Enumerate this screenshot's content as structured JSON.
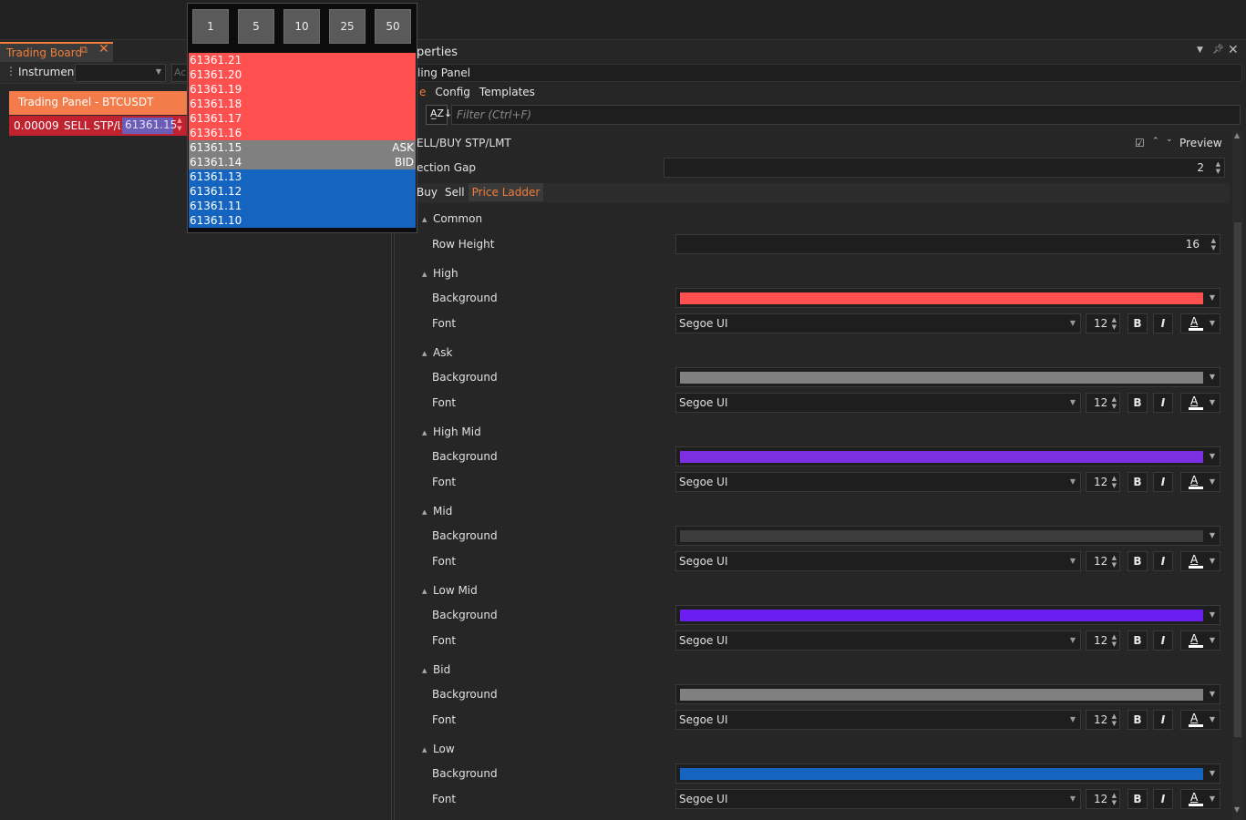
{
  "trading_board": {
    "tab_title": "Trading Board",
    "float_icon": "float-icon",
    "close_icon": "close-icon",
    "instrument_label": "Instrument:",
    "instrument_value": "",
    "extra_field": "Ac",
    "panel": {
      "title": "Trading Panel   -   BTCUSDT",
      "qty": "0.00009",
      "side": "SELL STP/LMT",
      "price": "61361.15"
    }
  },
  "price_popup": {
    "steps": [
      "1",
      "5",
      "10",
      "25",
      "50"
    ],
    "rows": [
      {
        "price": "61361.21",
        "tag": "",
        "color": "#ff5050"
      },
      {
        "price": "61361.20",
        "tag": "",
        "color": "#ff5050"
      },
      {
        "price": "61361.19",
        "tag": "",
        "color": "#ff5050"
      },
      {
        "price": "61361.18",
        "tag": "",
        "color": "#ff5050"
      },
      {
        "price": "61361.17",
        "tag": "",
        "color": "#ff5050"
      },
      {
        "price": "61361.16",
        "tag": "",
        "color": "#ff5050"
      },
      {
        "price": "61361.15",
        "tag": "ASK",
        "color": "#808080"
      },
      {
        "price": "61361.14",
        "tag": "BID",
        "color": "#808080"
      },
      {
        "price": "61361.13",
        "tag": "",
        "color": "#1565c0"
      },
      {
        "price": "61361.12",
        "tag": "",
        "color": "#1565c0"
      },
      {
        "price": "61361.11",
        "tag": "",
        "color": "#1565c0"
      },
      {
        "price": "61361.10",
        "tag": "",
        "color": "#1565c0"
      }
    ]
  },
  "properties": {
    "title": "perties",
    "object": "ling Panel",
    "tabs": [
      "e",
      "Config",
      "Templates"
    ],
    "active_tab": 0,
    "filter_placeholder": "Filter (Ctrl+F)",
    "top_section": {
      "name": "ELL/BUY STP/LMT",
      "preview_label": "Preview",
      "section_gap_label": "ection Gap",
      "section_gap_value": "2"
    },
    "sub_tabs": [
      "Buy",
      "Sell",
      "Price Ladder"
    ],
    "active_sub_tab": 2,
    "common": {
      "title": "Common",
      "row_height_label": "Row Height",
      "row_height_value": "16"
    },
    "background_label": "Background",
    "font_label": "Font",
    "font_name": "Segoe UI",
    "font_size": "12",
    "bold_label": "B",
    "italic_label": "I",
    "font_color_glyph": "A",
    "levels": [
      {
        "name": "High",
        "color": "#ff5050"
      },
      {
        "name": "Ask",
        "color": "#808080"
      },
      {
        "name": "High Mid",
        "color": "#7b2fe0"
      },
      {
        "name": "Mid",
        "color": "#3c3c3c"
      },
      {
        "name": "Low Mid",
        "color": "#6a1ff0"
      },
      {
        "name": "Bid",
        "color": "#808080"
      },
      {
        "name": "Low",
        "color": "#1565c0"
      }
    ]
  }
}
